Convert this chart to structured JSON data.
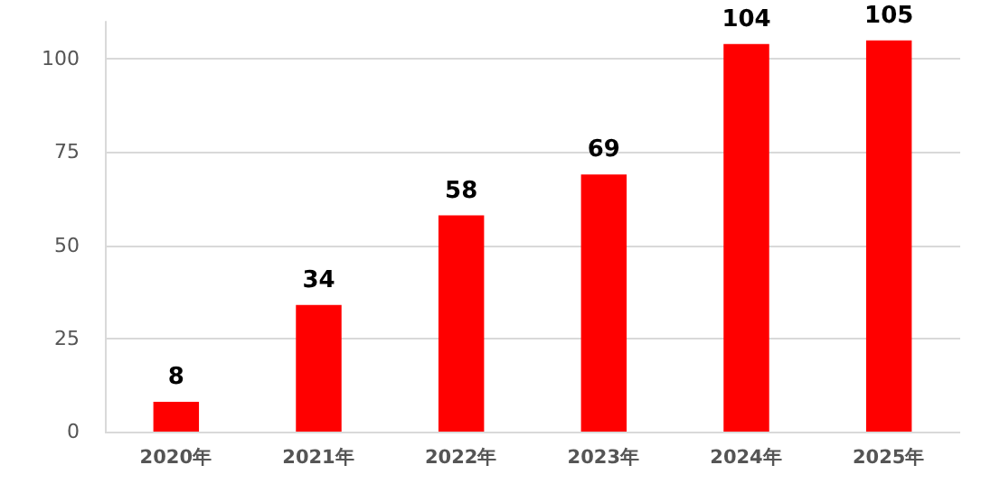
{
  "chart_data": {
    "type": "bar",
    "categories": [
      "2020年",
      "2021年",
      "2022年",
      "2023年",
      "2024年",
      "2025年"
    ],
    "values": [
      8,
      34,
      58,
      69,
      104,
      105
    ],
    "color": "#ff0000",
    "ylim": [
      0,
      110
    ],
    "yticks": [
      0,
      25,
      50,
      75,
      100
    ],
    "grid": "y",
    "data_labels": true
  }
}
